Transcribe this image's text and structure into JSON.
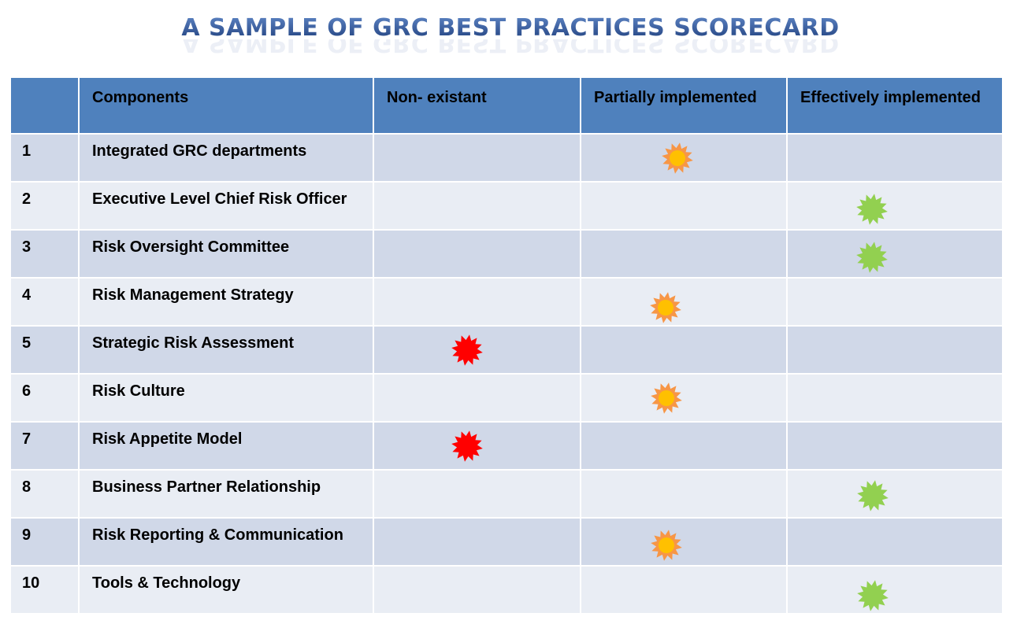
{
  "title": "A SAMPLE OF GRC BEST PRACTICES SCORECARD",
  "headers": [
    "",
    "Components",
    "Non- existant",
    "Partially implemented",
    "Effectively implemented"
  ],
  "rows": [
    {
      "num": "1",
      "component": "Integrated GRC departments",
      "status": "partial"
    },
    {
      "num": "2",
      "component": "Executive Level Chief Risk Officer",
      "status": "effective"
    },
    {
      "num": "3",
      "component": "Risk Oversight Committee",
      "status": "effective"
    },
    {
      "num": "4",
      "component": "Risk Management Strategy",
      "status": "partial"
    },
    {
      "num": "5",
      "component": "Strategic Risk Assessment",
      "status": "none"
    },
    {
      "num": "6",
      "component": "Risk Culture",
      "status": "partial"
    },
    {
      "num": "7",
      "component": "Risk Appetite Model",
      "status": "none"
    },
    {
      "num": "8",
      "component": "Business Partner Relationship",
      "status": "effective"
    },
    {
      "num": "9",
      "component": "Risk Reporting & Communication",
      "status": "partial"
    },
    {
      "num": "10",
      "component": "Tools & Technology",
      "status": "effective"
    }
  ],
  "marker_colors": {
    "none": "#ff0000",
    "partial": "#f79646",
    "partial_inner": "#ffc000",
    "effective": "#92d050"
  },
  "marker_icon": "starburst-icon"
}
